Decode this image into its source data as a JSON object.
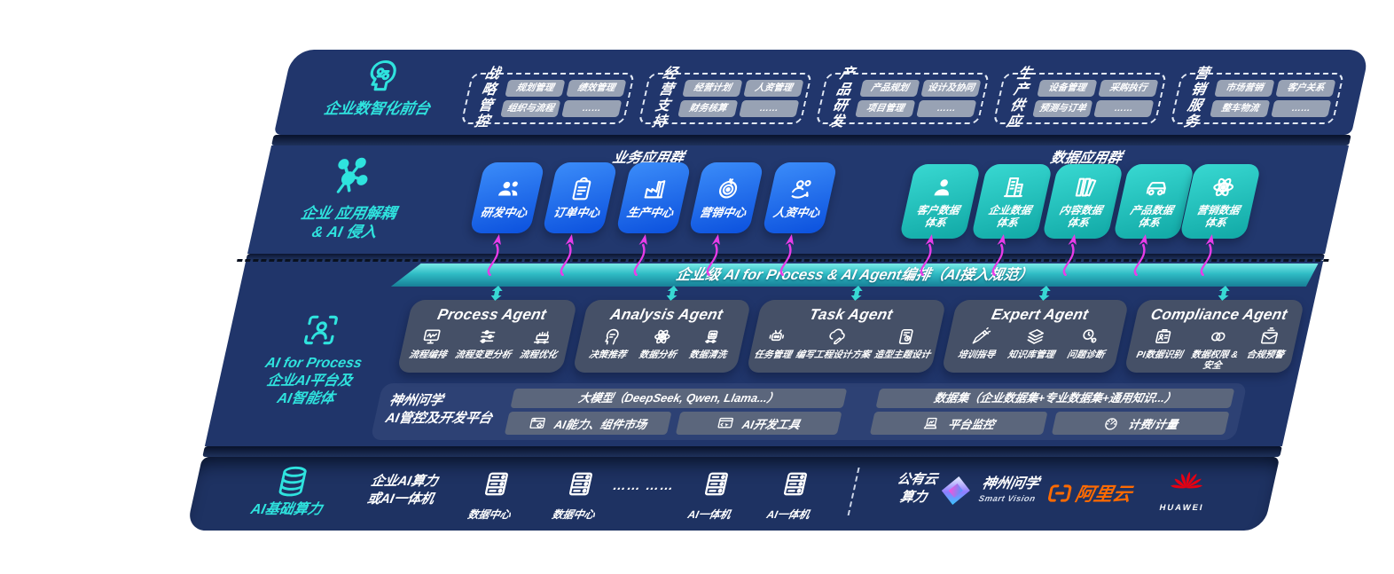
{
  "colors": {
    "navy": "#21366C",
    "accent_teal": "#2FE3DE",
    "tile_blue": "#1E6DF0",
    "tile_teal": "#2BC9C4",
    "banner_teal": "#2FBCC4",
    "magenta": "#E83CE8",
    "pill_gray": "#98A2B4",
    "agent_gray": "#475167",
    "aliyun_orange": "#FF6A00",
    "huawei_red": "#E60012"
  },
  "front_office": {
    "icon": "brain-icon",
    "label": "企业数智化前台",
    "groups": [
      {
        "name": "战略\n管控",
        "items": [
          "规划管理",
          "绩效管理",
          "组织与流程",
          "……"
        ]
      },
      {
        "name": "经营\n支持",
        "items": [
          "经营计划",
          "人资管理",
          "财务核算",
          "……"
        ]
      },
      {
        "name": "产品\n研发",
        "items": [
          "产品规划",
          "设计及协同",
          "项目管理",
          "……"
        ]
      },
      {
        "name": "生产\n供应",
        "items": [
          "设备管理",
          "采购执行",
          "预测与订单",
          "……"
        ]
      },
      {
        "name": "营销\n服务",
        "items": [
          "市场营销",
          "客户关系",
          "整车物流",
          "……"
        ]
      }
    ]
  },
  "app_layer": {
    "icon": "molecule-icon",
    "label": "企业 应用解耦\n& AI 侵入",
    "business_group_title": "业务应用群",
    "business_apps": [
      {
        "label": "研发中心",
        "icon": "team-icon"
      },
      {
        "label": "订单中心",
        "icon": "clipboard-icon"
      },
      {
        "label": "生产中心",
        "icon": "factory-icon"
      },
      {
        "label": "营销中心",
        "icon": "target-icon"
      },
      {
        "label": "人资中心",
        "icon": "hr-icon"
      }
    ],
    "data_group_title": "数据应用群",
    "data_apps": [
      {
        "label": "客户数据体系",
        "icon": "person-icon"
      },
      {
        "label": "企业数据体系",
        "icon": "building-icon"
      },
      {
        "label": "内容数据体系",
        "icon": "content-icon"
      },
      {
        "label": "产品数据体系",
        "icon": "car-icon"
      },
      {
        "label": "营销数据体系",
        "icon": "atom-icon"
      }
    ]
  },
  "ai_layer": {
    "icon": "scan-person-icon",
    "label": "AI for Process\n企业AI平台及\nAI智能体",
    "banner": "企业级 AI for Process & AI Agent编排（AI接入规范）",
    "agents": [
      {
        "title": "Process Agent",
        "items": [
          {
            "label": "流程编排",
            "icon": "monitor-wave-icon"
          },
          {
            "label": "流程变更分析",
            "icon": "sliders-icon"
          },
          {
            "label": "流程优化",
            "icon": "machine-icon"
          }
        ]
      },
      {
        "title": "Analysis Agent",
        "items": [
          {
            "label": "决策推荐",
            "icon": "decision-icon"
          },
          {
            "label": "数据分析",
            "icon": "atom-icon"
          },
          {
            "label": "数据清洗",
            "icon": "clean-icon"
          }
        ]
      },
      {
        "title": "Task Agent",
        "items": [
          {
            "label": "任务管理",
            "icon": "robot-icon"
          },
          {
            "label": "编写工程设计方案",
            "icon": "cloud-edit-icon"
          },
          {
            "label": "造型主题设计",
            "icon": "design-icon"
          }
        ]
      },
      {
        "title": "Expert Agent",
        "items": [
          {
            "label": "培训指导",
            "icon": "training-icon"
          },
          {
            "label": "知识库管理",
            "icon": "layers-icon"
          },
          {
            "label": "问题诊断",
            "icon": "diagnose-icon"
          }
        ]
      },
      {
        "title": "Compliance Agent",
        "items": [
          {
            "label": "PI数据识别",
            "icon": "id-card-icon"
          },
          {
            "label": "数据权限 &\n安全",
            "icon": "link-icon"
          },
          {
            "label": "合规预警",
            "icon": "alert-mail-icon"
          }
        ]
      }
    ],
    "platform": {
      "label": "神州问学\nAI管控及开发平台",
      "model_bar": "大模型（DeepSeek, Qwen, Llama...）",
      "model_cells": [
        {
          "label": "AI能力、组件市场",
          "icon": "market-icon"
        },
        {
          "label": "AI开发工具",
          "icon": "devtools-icon"
        }
      ],
      "data_bar": "数据集（企业数据集+专业数据集+通用知识...）",
      "data_cells": [
        {
          "label": "平台监控",
          "icon": "laptop-icon"
        },
        {
          "label": "计费/计量",
          "icon": "gauge-icon"
        }
      ]
    }
  },
  "infra_layer": {
    "icon": "database-icon",
    "label": "AI基础算力",
    "compute_label": "企业AI算力\n或AI一体机",
    "nodes": [
      {
        "label": "数据中心",
        "icon": "server-icon"
      },
      {
        "label": "数据中心",
        "icon": "server-icon"
      },
      {
        "label": "AI一体机",
        "icon": "server-icon"
      },
      {
        "label": "AI一体机",
        "icon": "server-icon"
      }
    ],
    "ellipsis": "…… ……",
    "public_cloud": "公有云\n算力",
    "vendors": [
      {
        "name": "神州问学",
        "sub": "Smart Vision",
        "icon": "smartvision-logo"
      },
      {
        "name": "阿里云",
        "icon": "aliyun-logo"
      },
      {
        "name": "HUAWEI",
        "icon": "huawei-logo"
      }
    ]
  }
}
